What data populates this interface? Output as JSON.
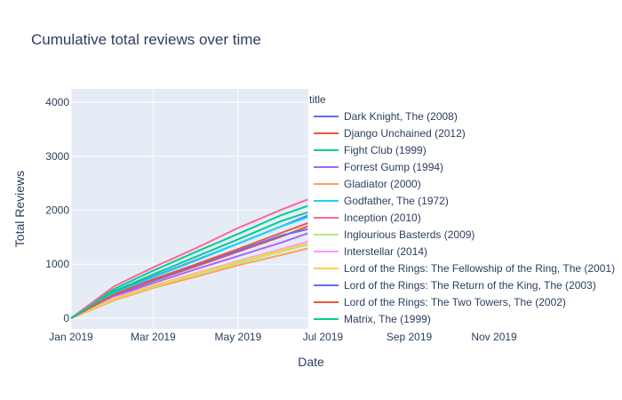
{
  "chart_data": {
    "type": "line",
    "title": "Cumulative total reviews over time",
    "xlabel": "Date",
    "ylabel": "Total Reviews",
    "legend_title": "title",
    "legend_position": "right",
    "grid": true,
    "xlim": [
      "2019-01-01",
      "2019-12-31"
    ],
    "ylim": [
      -200,
      4250
    ],
    "x_ticks": [
      {
        "value": "2019-01-01",
        "label": "Jan 2019"
      },
      {
        "value": "2019-03-01",
        "label": "Mar 2019"
      },
      {
        "value": "2019-05-01",
        "label": "May 2019"
      },
      {
        "value": "2019-07-01",
        "label": "Jul 2019"
      },
      {
        "value": "2019-09-01",
        "label": "Sep 2019"
      },
      {
        "value": "2019-11-01",
        "label": "Nov 2019"
      }
    ],
    "y_ticks": [
      {
        "value": 0,
        "label": "0"
      },
      {
        "value": 1000,
        "label": "1000"
      },
      {
        "value": 2000,
        "label": "2000"
      },
      {
        "value": 3000,
        "label": "3000"
      },
      {
        "value": 4000,
        "label": "4000"
      }
    ],
    "x": [
      "2019-01-01",
      "2019-02-01",
      "2019-03-01",
      "2019-04-01",
      "2019-05-01",
      "2019-06-01",
      "2019-06-20"
    ],
    "series": [
      {
        "name": "Dark Knight, The (2008)",
        "color": "#636efa",
        "values": [
          0,
          480,
          770,
          1080,
          1380,
          1700,
          1900
        ]
      },
      {
        "name": "Django Unchained (2012)",
        "color": "#ef553b",
        "values": [
          0,
          420,
          690,
          960,
          1230,
          1510,
          1700
        ]
      },
      {
        "name": "Fight Club (1999)",
        "color": "#00cc96",
        "values": [
          0,
          540,
          880,
          1230,
          1560,
          1910,
          2080
        ]
      },
      {
        "name": "Forrest Gump (1994)",
        "color": "#ab63fa",
        "values": [
          0,
          400,
          650,
          910,
          1150,
          1400,
          1570
        ]
      },
      {
        "name": "Gladiator (2000)",
        "color": "#ffa15a",
        "values": [
          0,
          330,
          560,
          770,
          980,
          1170,
          1290
        ]
      },
      {
        "name": "Godfather, The (1972)",
        "color": "#19d3f3",
        "values": [
          0,
          460,
          760,
          1070,
          1380,
          1700,
          1870
        ]
      },
      {
        "name": "Inception (2010)",
        "color": "#ff6692",
        "values": [
          0,
          590,
          940,
          1300,
          1670,
          2010,
          2200
        ]
      },
      {
        "name": "Inglourious Basterds (2009)",
        "color": "#b6e880",
        "values": [
          0,
          350,
          580,
          810,
          1020,
          1230,
          1360
        ]
      },
      {
        "name": "Interstellar (2014)",
        "color": "#ff97ff",
        "values": [
          0,
          380,
          600,
          840,
          1060,
          1280,
          1420
        ]
      },
      {
        "name": "Lord of the Rings: The Fellowship of the Ring, The (2001)",
        "color": "#fecb52",
        "values": [
          0,
          360,
          600,
          830,
          1050,
          1260,
          1380
        ]
      },
      {
        "name": "Lord of the Rings: The Return of the King, The (2003)",
        "color": "#636efa",
        "values": [
          0,
          430,
          700,
          980,
          1250,
          1530,
          1650
        ]
      },
      {
        "name": "Lord of the Rings: The Two Towers, The (2002)",
        "color": "#ef553b",
        "values": [
          0,
          440,
          720,
          1000,
          1280,
          1580,
          1760
        ]
      },
      {
        "name": "Matrix, The (1999)",
        "color": "#00cc96",
        "values": [
          0,
          500,
          810,
          1140,
          1460,
          1800,
          1960
        ]
      }
    ]
  }
}
